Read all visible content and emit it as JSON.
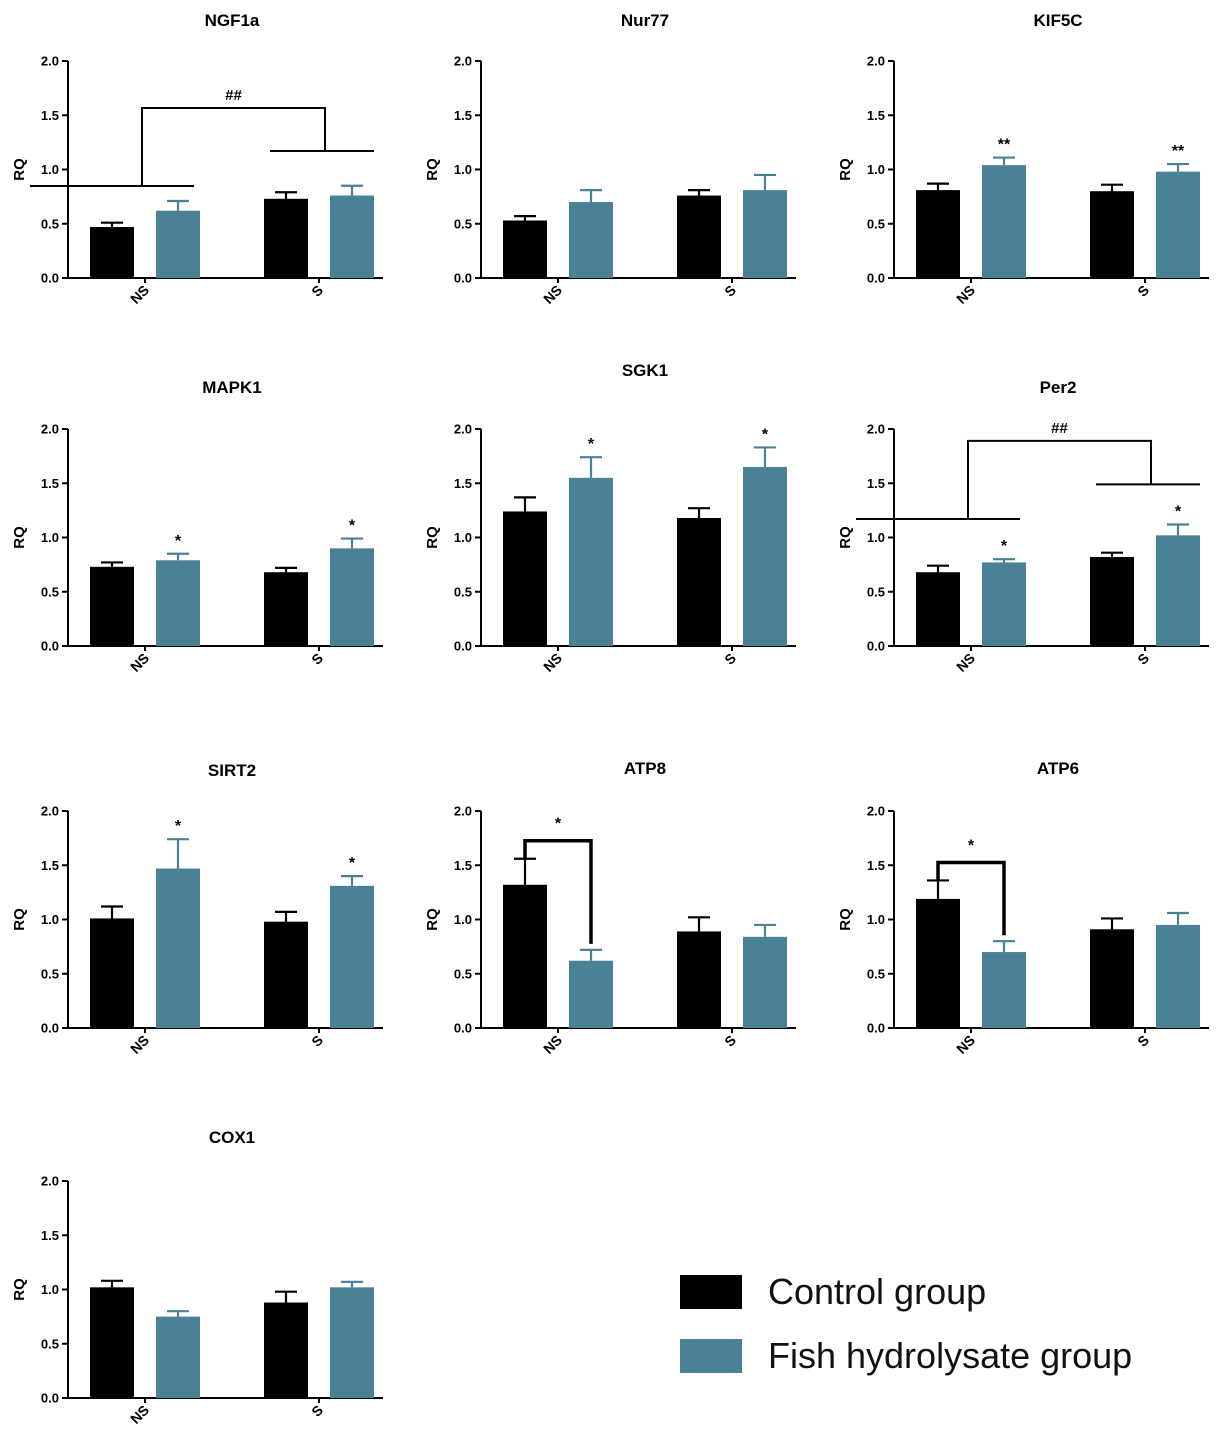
{
  "colors": {
    "control": "#000000",
    "fish": "#4a8196",
    "axis": "#000000"
  },
  "legend": {
    "control_label": "Control group",
    "fish_label": "Fish hydrolysate group"
  },
  "chart_data": [
    {
      "type": "bar",
      "title": "NGF1a",
      "ylabel": "RQ",
      "ylim": [
        0,
        2.0
      ],
      "yticks": [
        "0.0",
        "0.5",
        "1.0",
        "1.5",
        "2.0"
      ],
      "categories": [
        "NS",
        "S"
      ],
      "series": [
        {
          "name": "Control group",
          "values": [
            0.47,
            0.73
          ],
          "errors": [
            0.04,
            0.06
          ]
        },
        {
          "name": "Fish hydrolysate group",
          "values": [
            0.62,
            0.76
          ],
          "errors": [
            0.09,
            0.09
          ]
        }
      ],
      "stars": [],
      "group_comparison": {
        "label": "##"
      },
      "pair_comparison": null
    },
    {
      "type": "bar",
      "title": "Nur77",
      "ylabel": "RQ",
      "ylim": [
        0,
        2.0
      ],
      "yticks": [
        "0.0",
        "0.5",
        "1.0",
        "1.5",
        "2.0"
      ],
      "categories": [
        "NS",
        "S"
      ],
      "series": [
        {
          "name": "Control group",
          "values": [
            0.53,
            0.76
          ],
          "errors": [
            0.04,
            0.05
          ]
        },
        {
          "name": "Fish hydrolysate group",
          "values": [
            0.7,
            0.81
          ],
          "errors": [
            0.11,
            0.14
          ]
        }
      ],
      "stars": [],
      "group_comparison": null,
      "pair_comparison": null
    },
    {
      "type": "bar",
      "title": "KIF5C",
      "ylabel": "RQ",
      "ylim": [
        0,
        2.0
      ],
      "yticks": [
        "0.0",
        "0.5",
        "1.0",
        "1.5",
        "2.0"
      ],
      "categories": [
        "NS",
        "S"
      ],
      "series": [
        {
          "name": "Control group",
          "values": [
            0.81,
            0.8
          ],
          "errors": [
            0.06,
            0.06
          ]
        },
        {
          "name": "Fish hydrolysate group",
          "values": [
            1.04,
            0.98
          ],
          "errors": [
            0.07,
            0.07
          ]
        }
      ],
      "stars": [
        {
          "category": 0,
          "series": 1,
          "label": "**"
        },
        {
          "category": 1,
          "series": 1,
          "label": "**"
        }
      ],
      "group_comparison": null,
      "pair_comparison": null
    },
    {
      "type": "bar",
      "title": "MAPK1",
      "ylabel": "RQ",
      "ylim": [
        0,
        2.0
      ],
      "yticks": [
        "0.0",
        "0.5",
        "1.0",
        "1.5",
        "2.0"
      ],
      "categories": [
        "NS",
        "S"
      ],
      "series": [
        {
          "name": "Control group",
          "values": [
            0.73,
            0.68
          ],
          "errors": [
            0.04,
            0.04
          ]
        },
        {
          "name": "Fish hydrolysate group",
          "values": [
            0.79,
            0.9
          ],
          "errors": [
            0.06,
            0.09
          ]
        }
      ],
      "stars": [
        {
          "category": 0,
          "series": 1,
          "label": "*"
        },
        {
          "category": 1,
          "series": 1,
          "label": "*"
        }
      ],
      "group_comparison": null,
      "pair_comparison": null
    },
    {
      "type": "bar",
      "title": "SGK1",
      "ylabel": "RQ",
      "ylim": [
        0,
        2.0
      ],
      "yticks": [
        "0.0",
        "0.5",
        "1.0",
        "1.5",
        "2.0"
      ],
      "categories": [
        "NS",
        "S"
      ],
      "series": [
        {
          "name": "Control group",
          "values": [
            1.24,
            1.18
          ],
          "errors": [
            0.13,
            0.09
          ]
        },
        {
          "name": "Fish hydrolysate group",
          "values": [
            1.55,
            1.65
          ],
          "errors": [
            0.19,
            0.18
          ]
        }
      ],
      "stars": [
        {
          "category": 0,
          "series": 1,
          "label": "*"
        },
        {
          "category": 1,
          "series": 1,
          "label": "*"
        }
      ],
      "group_comparison": null,
      "pair_comparison": null
    },
    {
      "type": "bar",
      "title": "Per2",
      "ylabel": "RQ",
      "ylim": [
        0,
        2.0
      ],
      "yticks": [
        "0.0",
        "0.5",
        "1.0",
        "1.5",
        "2.0"
      ],
      "categories": [
        "NS",
        "S"
      ],
      "series": [
        {
          "name": "Control group",
          "values": [
            0.68,
            0.82
          ],
          "errors": [
            0.06,
            0.04
          ]
        },
        {
          "name": "Fish hydrolysate group",
          "values": [
            0.77,
            1.02
          ],
          "errors": [
            0.03,
            0.1
          ]
        }
      ],
      "stars": [
        {
          "category": 0,
          "series": 1,
          "label": "*"
        },
        {
          "category": 1,
          "series": 1,
          "label": "*"
        }
      ],
      "group_comparison": {
        "label": "##"
      },
      "pair_comparison": null
    },
    {
      "type": "bar",
      "title": "SIRT2",
      "ylabel": "RQ",
      "ylim": [
        0,
        2.0
      ],
      "yticks": [
        "0.0",
        "0.5",
        "1.0",
        "1.5",
        "2.0"
      ],
      "categories": [
        "NS",
        "S"
      ],
      "series": [
        {
          "name": "Control group",
          "values": [
            1.01,
            0.98
          ],
          "errors": [
            0.11,
            0.09
          ]
        },
        {
          "name": "Fish hydrolysate group",
          "values": [
            1.47,
            1.31
          ],
          "errors": [
            0.27,
            0.09
          ]
        }
      ],
      "stars": [
        {
          "category": 0,
          "series": 1,
          "label": "*"
        },
        {
          "category": 1,
          "series": 1,
          "label": "*"
        }
      ],
      "group_comparison": null,
      "pair_comparison": null
    },
    {
      "type": "bar",
      "title": "ATP8",
      "ylabel": "RQ",
      "ylim": [
        0,
        2.0
      ],
      "yticks": [
        "0.0",
        "0.5",
        "1.0",
        "1.5",
        "2.0"
      ],
      "categories": [
        "NS",
        "S"
      ],
      "series": [
        {
          "name": "Control group",
          "values": [
            1.32,
            0.89
          ],
          "errors": [
            0.24,
            0.13
          ]
        },
        {
          "name": "Fish hydrolysate group",
          "values": [
            0.62,
            0.84
          ],
          "errors": [
            0.1,
            0.11
          ]
        }
      ],
      "stars": [],
      "group_comparison": null,
      "pair_comparison": {
        "category": 0,
        "label": "*"
      }
    },
    {
      "type": "bar",
      "title": "ATP6",
      "ylabel": "RQ",
      "ylim": [
        0,
        2.0
      ],
      "yticks": [
        "0.0",
        "0.5",
        "1.0",
        "1.5",
        "2.0"
      ],
      "categories": [
        "NS",
        "S"
      ],
      "series": [
        {
          "name": "Control group",
          "values": [
            1.19,
            0.91
          ],
          "errors": [
            0.17,
            0.1
          ]
        },
        {
          "name": "Fish hydrolysate group",
          "values": [
            0.7,
            0.95
          ],
          "errors": [
            0.1,
            0.11
          ]
        }
      ],
      "stars": [],
      "group_comparison": null,
      "pair_comparison": {
        "category": 0,
        "label": "*"
      }
    },
    {
      "type": "bar",
      "title": "COX1",
      "ylabel": "RQ",
      "ylim": [
        0,
        2.0
      ],
      "yticks": [
        "0.0",
        "0.5",
        "1.0",
        "1.5",
        "2.0"
      ],
      "categories": [
        "NS",
        "S"
      ],
      "series": [
        {
          "name": "Control group",
          "values": [
            1.02,
            0.88
          ],
          "errors": [
            0.06,
            0.1
          ]
        },
        {
          "name": "Fish hydrolysate group",
          "values": [
            0.75,
            1.02
          ],
          "errors": [
            0.05,
            0.05
          ]
        }
      ],
      "stars": [],
      "group_comparison": null,
      "pair_comparison": null
    }
  ]
}
